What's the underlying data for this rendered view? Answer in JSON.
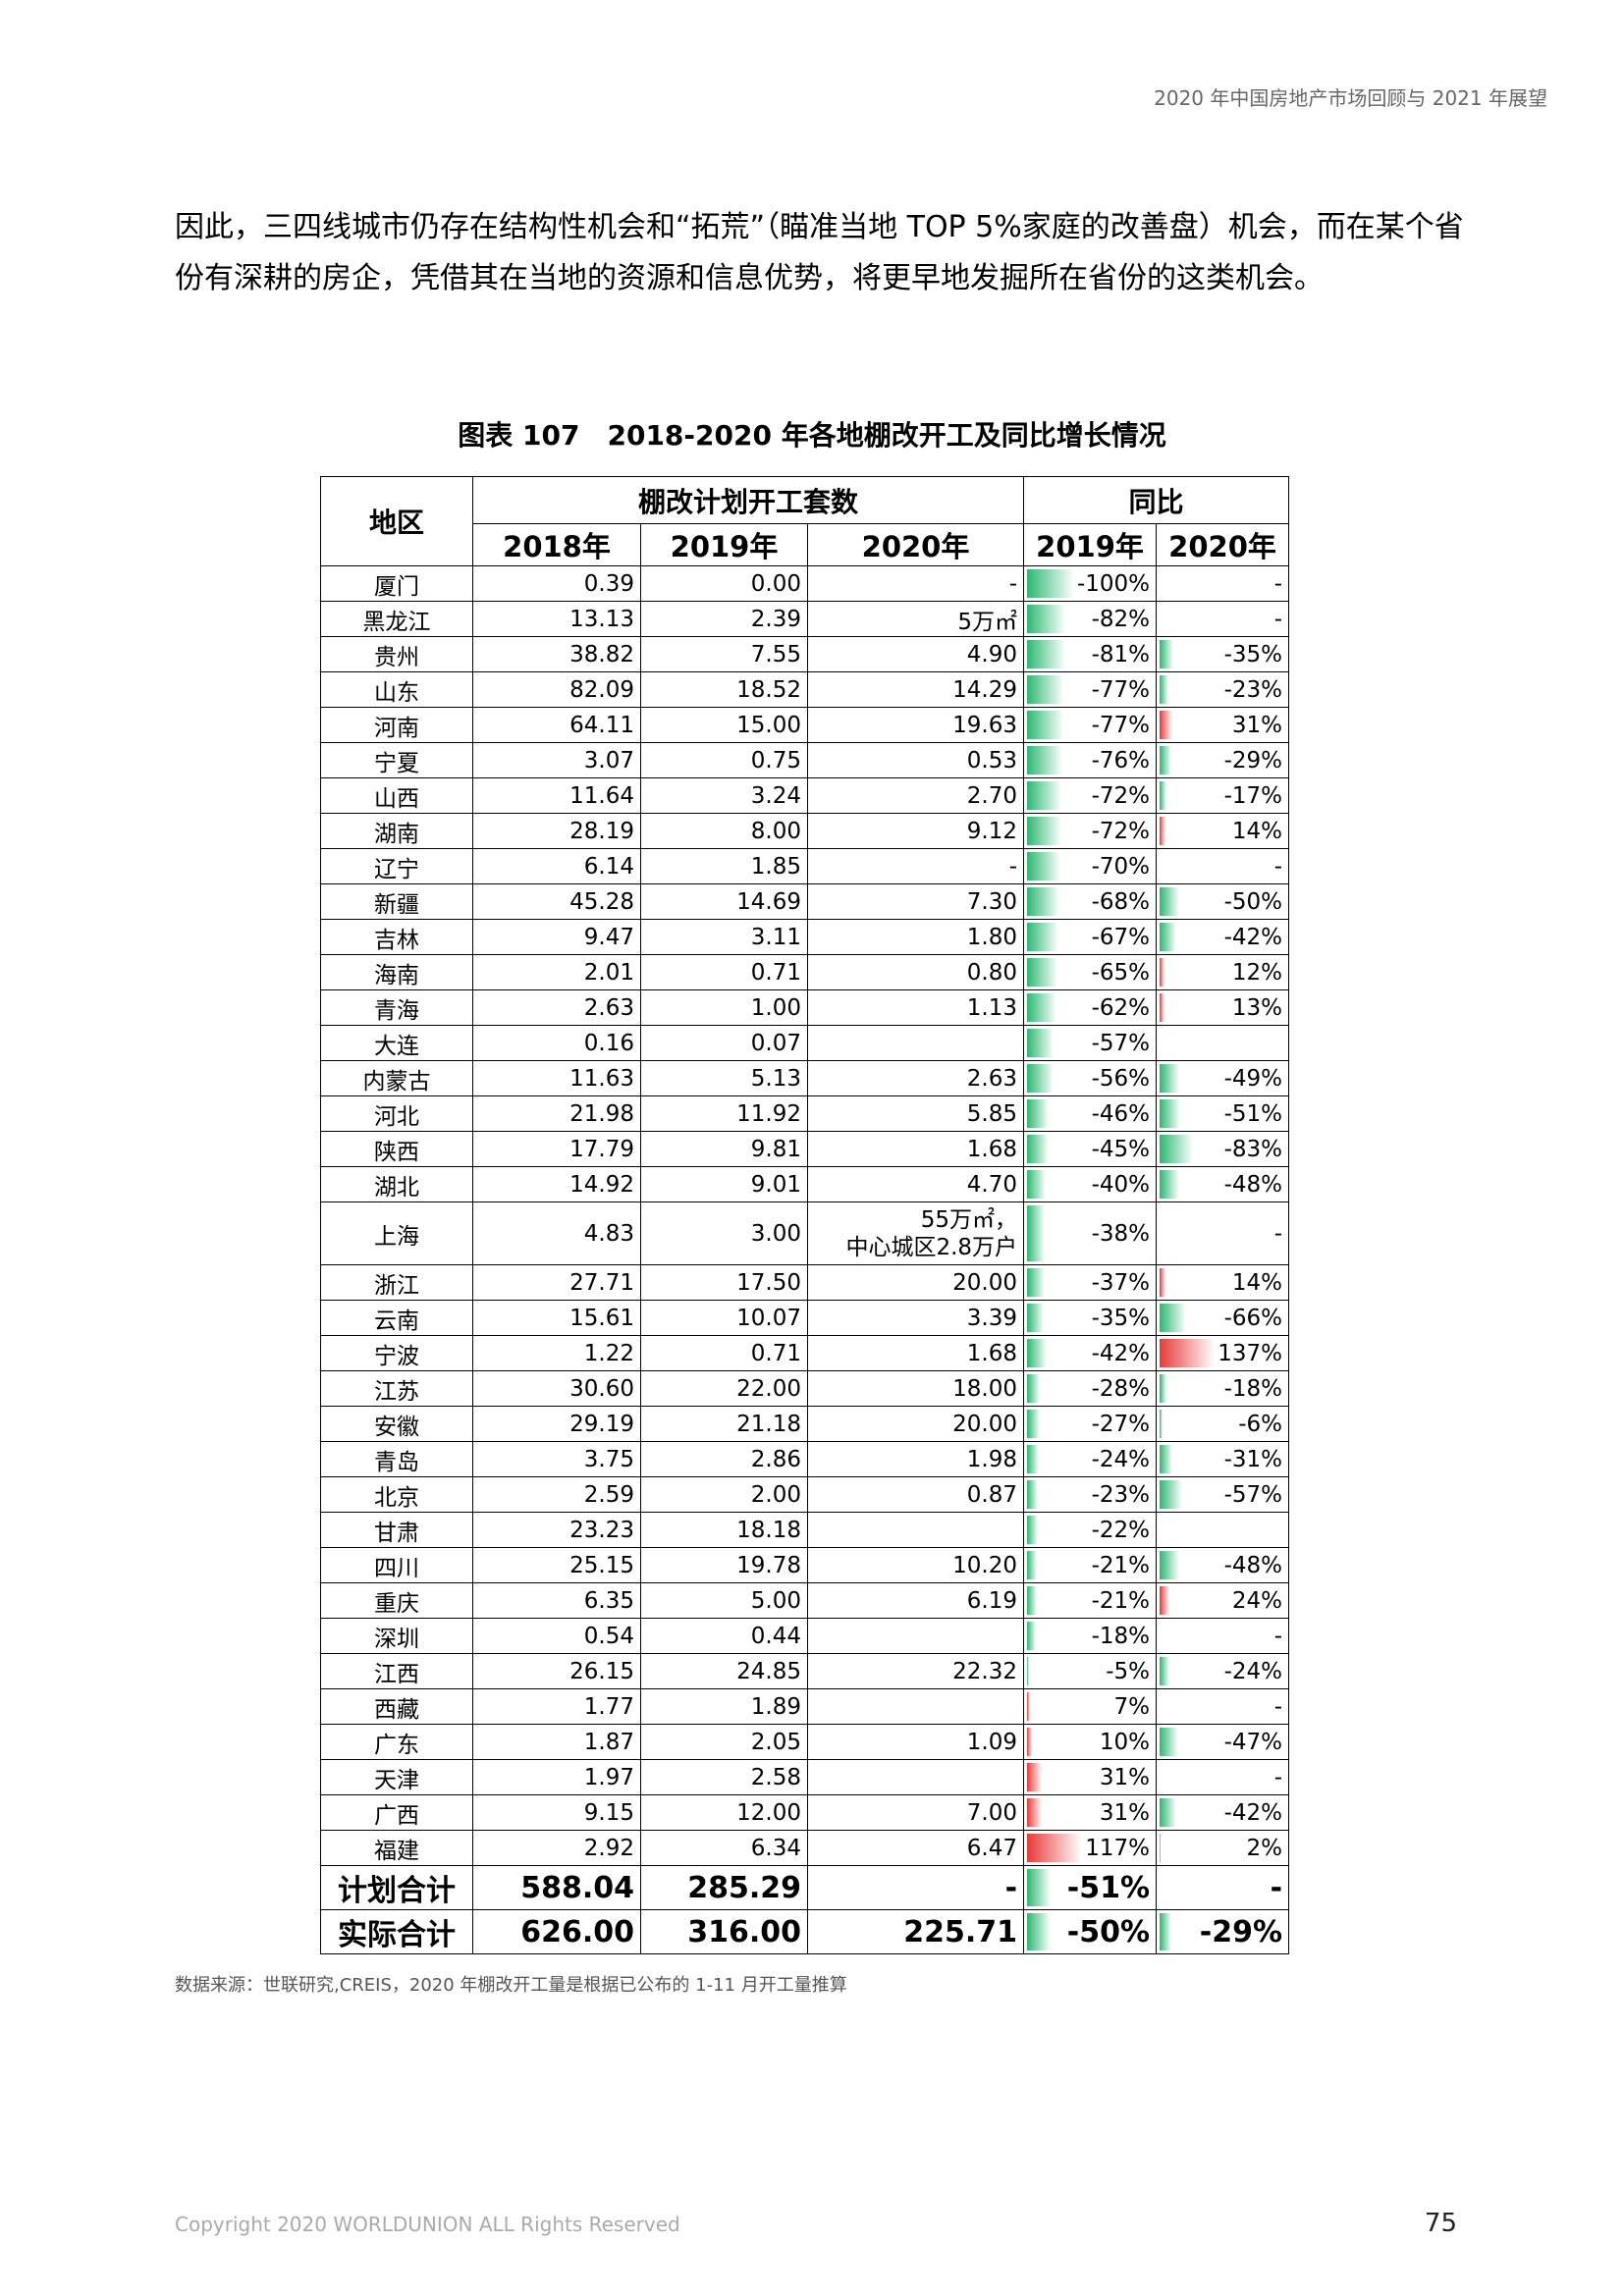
{
  "header": "2020 年中国房地产市场回顾与 2021 年展望",
  "paragraph": "因此，三四线城市仍存在结构性机会和“拓荒”（瞄准当地 TOP 5%家庭的改善盘）机会，而在某个省份有深耕的房企，凭借其在当地的资源和信息优势，将更早地发掘所在省份的这类机会。",
  "table_title": "图表 107　2018-2020 年各地棚改开工及同比增长情况",
  "table": {
    "head": {
      "region": "地区",
      "plan_group": "棚改计划开工套数",
      "yoy_group": "同比",
      "y2018": "2018年",
      "y2019": "2019年",
      "y2020": "2020年",
      "yoy2019": "2019年",
      "yoy2020": "2020年"
    },
    "rows": [
      {
        "region": "厦门",
        "v2018": "0.39",
        "v2019": "0.00",
        "v2020": "-",
        "p2019": "-100%",
        "n2019": -100,
        "p2020": "-",
        "n2020": null
      },
      {
        "region": "黑龙江",
        "v2018": "13.13",
        "v2019": "2.39",
        "v2020": "5万㎡",
        "p2019": "-82%",
        "n2019": -82,
        "p2020": "-",
        "n2020": null
      },
      {
        "region": "贵州",
        "v2018": "38.82",
        "v2019": "7.55",
        "v2020": "4.90",
        "p2019": "-81%",
        "n2019": -81,
        "p2020": "-35%",
        "n2020": -35
      },
      {
        "region": "山东",
        "v2018": "82.09",
        "v2019": "18.52",
        "v2020": "14.29",
        "p2019": "-77%",
        "n2019": -77,
        "p2020": "-23%",
        "n2020": -23
      },
      {
        "region": "河南",
        "v2018": "64.11",
        "v2019": "15.00",
        "v2020": "19.63",
        "p2019": "-77%",
        "n2019": -77,
        "p2020": "31%",
        "n2020": 31
      },
      {
        "region": "宁夏",
        "v2018": "3.07",
        "v2019": "0.75",
        "v2020": "0.53",
        "p2019": "-76%",
        "n2019": -76,
        "p2020": "-29%",
        "n2020": -29
      },
      {
        "region": "山西",
        "v2018": "11.64",
        "v2019": "3.24",
        "v2020": "2.70",
        "p2019": "-72%",
        "n2019": -72,
        "p2020": "-17%",
        "n2020": -17
      },
      {
        "region": "湖南",
        "v2018": "28.19",
        "v2019": "8.00",
        "v2020": "9.12",
        "p2019": "-72%",
        "n2019": -72,
        "p2020": "14%",
        "n2020": 14
      },
      {
        "region": "辽宁",
        "v2018": "6.14",
        "v2019": "1.85",
        "v2020": "-",
        "p2019": "-70%",
        "n2019": -70,
        "p2020": "-",
        "n2020": null
      },
      {
        "region": "新疆",
        "v2018": "45.28",
        "v2019": "14.69",
        "v2020": "7.30",
        "p2019": "-68%",
        "n2019": -68,
        "p2020": "-50%",
        "n2020": -50
      },
      {
        "region": "吉林",
        "v2018": "9.47",
        "v2019": "3.11",
        "v2020": "1.80",
        "p2019": "-67%",
        "n2019": -67,
        "p2020": "-42%",
        "n2020": -42
      },
      {
        "region": "海南",
        "v2018": "2.01",
        "v2019": "0.71",
        "v2020": "0.80",
        "p2019": "-65%",
        "n2019": -65,
        "p2020": "12%",
        "n2020": 12
      },
      {
        "region": "青海",
        "v2018": "2.63",
        "v2019": "1.00",
        "v2020": "1.13",
        "p2019": "-62%",
        "n2019": -62,
        "p2020": "13%",
        "n2020": 13
      },
      {
        "region": "大连",
        "v2018": "0.16",
        "v2019": "0.07",
        "v2020": "",
        "p2019": "-57%",
        "n2019": -57,
        "p2020": "",
        "n2020": null
      },
      {
        "region": "内蒙古",
        "v2018": "11.63",
        "v2019": "5.13",
        "v2020": "2.63",
        "p2019": "-56%",
        "n2019": -56,
        "p2020": "-49%",
        "n2020": -49
      },
      {
        "region": "河北",
        "v2018": "21.98",
        "v2019": "11.92",
        "v2020": "5.85",
        "p2019": "-46%",
        "n2019": -46,
        "p2020": "-51%",
        "n2020": -51
      },
      {
        "region": "陕西",
        "v2018": "17.79",
        "v2019": "9.81",
        "v2020": "1.68",
        "p2019": "-45%",
        "n2019": -45,
        "p2020": "-83%",
        "n2020": -83
      },
      {
        "region": "湖北",
        "v2018": "14.92",
        "v2019": "9.01",
        "v2020": "4.70",
        "p2019": "-40%",
        "n2019": -40,
        "p2020": "-48%",
        "n2020": -48
      },
      {
        "region": "上海",
        "v2018": "4.83",
        "v2019": "3.00",
        "v2020": "55万㎡，\n中心城区2.8万户",
        "p2019": "-38%",
        "n2019": -38,
        "p2020": "-",
        "n2020": null,
        "tall": true
      },
      {
        "region": "浙江",
        "v2018": "27.71",
        "v2019": "17.50",
        "v2020": "20.00",
        "p2019": "-37%",
        "n2019": -37,
        "p2020": "14%",
        "n2020": 14
      },
      {
        "region": "云南",
        "v2018": "15.61",
        "v2019": "10.07",
        "v2020": "3.39",
        "p2019": "-35%",
        "n2019": -35,
        "p2020": "-66%",
        "n2020": -66
      },
      {
        "region": "宁波",
        "v2018": "1.22",
        "v2019": "0.71",
        "v2020": "1.68",
        "p2019": "-42%",
        "n2019": -42,
        "p2020": "137%",
        "n2020": 137
      },
      {
        "region": "江苏",
        "v2018": "30.60",
        "v2019": "22.00",
        "v2020": "18.00",
        "p2019": "-28%",
        "n2019": -28,
        "p2020": "-18%",
        "n2020": -18
      },
      {
        "region": "安徽",
        "v2018": "29.19",
        "v2019": "21.18",
        "v2020": "20.00",
        "p2019": "-27%",
        "n2019": -27,
        "p2020": "-6%",
        "n2020": -6
      },
      {
        "region": "青岛",
        "v2018": "3.75",
        "v2019": "2.86",
        "v2020": "1.98",
        "p2019": "-24%",
        "n2019": -24,
        "p2020": "-31%",
        "n2020": -31
      },
      {
        "region": "北京",
        "v2018": "2.59",
        "v2019": "2.00",
        "v2020": "0.87",
        "p2019": "-23%",
        "n2019": -23,
        "p2020": "-57%",
        "n2020": -57
      },
      {
        "region": "甘肃",
        "v2018": "23.23",
        "v2019": "18.18",
        "v2020": "",
        "p2019": "-22%",
        "n2019": -22,
        "p2020": "",
        "n2020": null
      },
      {
        "region": "四川",
        "v2018": "25.15",
        "v2019": "19.78",
        "v2020": "10.20",
        "p2019": "-21%",
        "n2019": -21,
        "p2020": "-48%",
        "n2020": -48
      },
      {
        "region": "重庆",
        "v2018": "6.35",
        "v2019": "5.00",
        "v2020": "6.19",
        "p2019": "-21%",
        "n2019": -21,
        "p2020": "24%",
        "n2020": 24
      },
      {
        "region": "深圳",
        "v2018": "0.54",
        "v2019": "0.44",
        "v2020": "",
        "p2019": "-18%",
        "n2019": -18,
        "p2020": "-",
        "n2020": null
      },
      {
        "region": "江西",
        "v2018": "26.15",
        "v2019": "24.85",
        "v2020": "22.32",
        "p2019": "-5%",
        "n2019": -5,
        "p2020": "-24%",
        "n2020": -24
      },
      {
        "region": "西藏",
        "v2018": "1.77",
        "v2019": "1.89",
        "v2020": "",
        "p2019": "7%",
        "n2019": 7,
        "p2020": "-",
        "n2020": null
      },
      {
        "region": "广东",
        "v2018": "1.87",
        "v2019": "2.05",
        "v2020": "1.09",
        "p2019": "10%",
        "n2019": 10,
        "p2020": "-47%",
        "n2020": -47
      },
      {
        "region": "天津",
        "v2018": "1.97",
        "v2019": "2.58",
        "v2020": "",
        "p2019": "31%",
        "n2019": 31,
        "p2020": "-",
        "n2020": null
      },
      {
        "region": "广西",
        "v2018": "9.15",
        "v2019": "12.00",
        "v2020": "7.00",
        "p2019": "31%",
        "n2019": 31,
        "p2020": "-42%",
        "n2020": -42
      },
      {
        "region": "福建",
        "v2018": "2.92",
        "v2019": "6.34",
        "v2020": "6.47",
        "p2019": "117%",
        "n2019": 117,
        "p2020": "2%",
        "n2020": 2
      },
      {
        "region": "计划合计",
        "v2018": "588.04",
        "v2019": "285.29",
        "v2020": "-",
        "p2019": "-51%",
        "n2019": -51,
        "p2020": "-",
        "n2020": null,
        "total": true
      },
      {
        "region": "实际合计",
        "v2018": "626.00",
        "v2019": "316.00",
        "v2020": "225.71",
        "p2019": "-50%",
        "n2019": -50,
        "p2020": "-29%",
        "n2020": -29,
        "total": true
      }
    ]
  },
  "colors": {
    "negative_bar": "#2db872",
    "positive_bar": "#e83a3a"
  },
  "source_note": "数据来源：世联研究,CREIS，2020 年棚改开工量是根据已公布的 1-11 月开工量推算",
  "copyright": "Copyright 2020 WORLDUNION ALL Rights Reserved",
  "page_number": "75"
}
